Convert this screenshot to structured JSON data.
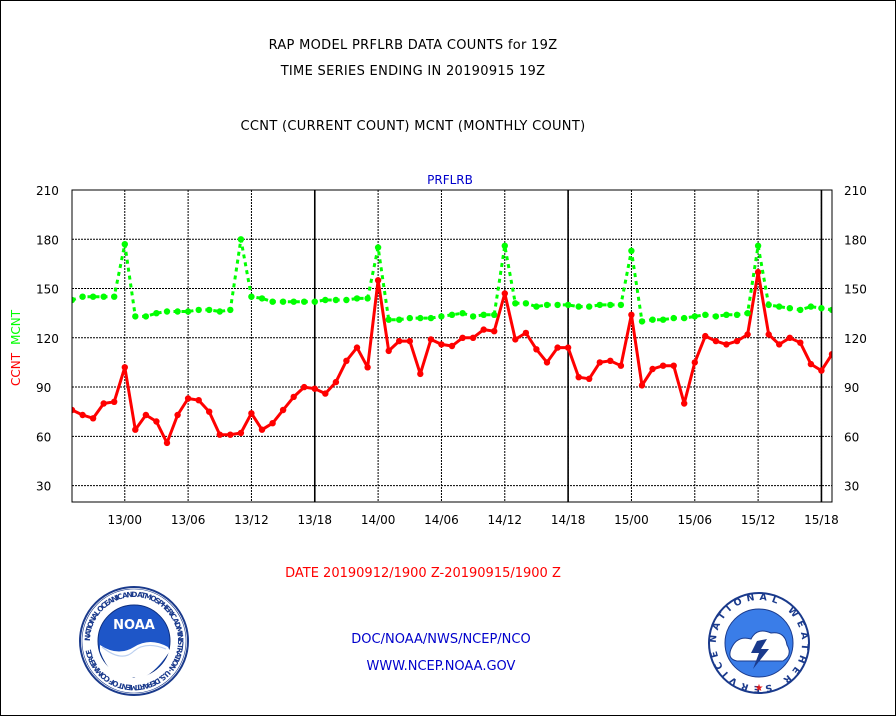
{
  "header": {
    "title_line1": "RAP MODEL PRFLRB DATA COUNTS for 19Z",
    "title_line2": "TIME SERIES ENDING IN 20190915 19Z",
    "subtitle": "CCNT (CURRENT COUNT) MCNT (MONTHLY COUNT)"
  },
  "footer": {
    "date_range": "DATE 20190912/1900 Z-20190915/1900 Z",
    "agency": "DOC/NOAA/NWS/NCEP/NCO",
    "website": "WWW.NCEP.NOAA.GOV"
  },
  "logos": {
    "noaa_text": "NOAA",
    "noaa_ring_text": "NATIONAL OCEANIC AND ATMOSPHERIC ADMINISTRATION · U.S. DEPARTMENT OF COMMERCE",
    "nws_ring_text": "NATIONAL WEATHER SERVICE"
  },
  "colors": {
    "ccnt": "#ff0000",
    "mcnt": "#00ff00",
    "panel_label": "#0000cc",
    "footer_link": "#0000cc"
  },
  "chart_data": {
    "type": "line",
    "panel_label": "PRFLRB",
    "ylabel_ccnt": "CCNT",
    "ylabel_mcnt": "MCNT",
    "ylim": [
      20,
      210
    ],
    "yticks": [
      30,
      60,
      90,
      120,
      150,
      180,
      210
    ],
    "xlim": [
      -5,
      67
    ],
    "x_unit": "hours relative to 13/00Z",
    "xtick_labels": [
      "13/00",
      "13/06",
      "13/12",
      "13/18",
      "14/00",
      "14/06",
      "14/12",
      "14/18",
      "15/00",
      "15/06",
      "15/12",
      "15/18"
    ],
    "xtick_values": [
      0,
      6,
      12,
      18,
      24,
      30,
      36,
      42,
      48,
      54,
      60,
      66
    ],
    "day_dividers": [
      18,
      42,
      66
    ],
    "x_start": -5,
    "series": [
      {
        "name": "CCNT",
        "color": "#ff0000",
        "values": [
          76,
          73,
          71,
          80,
          81,
          102,
          64,
          73,
          69,
          56,
          73,
          83,
          82,
          75,
          61,
          61,
          62,
          74,
          64,
          68,
          76,
          84,
          90,
          89,
          86,
          93,
          106,
          114,
          102,
          155,
          112,
          118,
          118,
          98,
          119,
          116,
          115,
          120,
          120,
          125,
          124,
          147,
          119,
          123,
          113,
          105,
          114,
          114,
          96,
          95,
          105,
          106,
          103,
          134,
          91,
          101,
          103,
          103,
          80,
          105,
          121,
          118,
          116,
          118,
          122,
          160,
          122,
          116,
          120,
          117,
          104,
          100,
          110
        ]
      },
      {
        "name": "MCNT",
        "color": "#00ff00",
        "values": [
          143,
          145,
          145,
          145,
          145,
          177,
          133,
          133,
          135,
          136,
          136,
          136,
          137,
          137,
          136,
          137,
          180,
          145,
          144,
          142,
          142,
          142,
          142,
          142,
          143,
          143,
          143,
          144,
          144,
          175,
          131,
          131,
          132,
          132,
          132,
          133,
          134,
          135,
          133,
          134,
          134,
          176,
          141,
          141,
          139,
          140,
          140,
          140,
          139,
          139,
          140,
          140,
          140,
          173,
          130,
          131,
          131,
          132,
          132,
          133,
          134,
          133,
          134,
          134,
          135,
          176,
          140,
          139,
          138,
          137,
          139,
          138,
          137
        ]
      }
    ]
  }
}
